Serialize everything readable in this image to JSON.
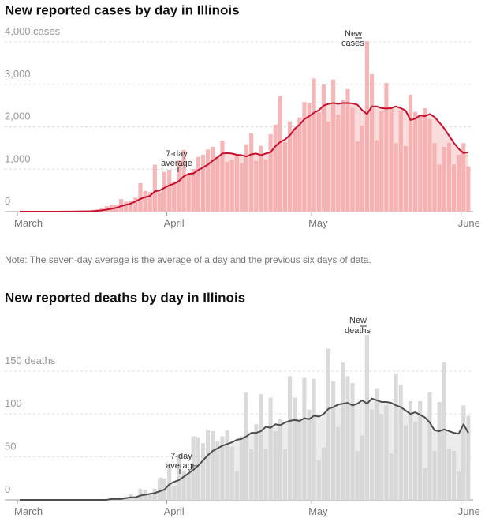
{
  "chart_data": [
    {
      "type": "bar",
      "title": "New reported cases by day in Illinois",
      "note": "Note: The seven-day average is the average of a day and the previous six days of data.",
      "bar_annotation": [
        "New",
        "cases"
      ],
      "line_annotation": [
        "7-day",
        "average"
      ],
      "x": [
        0,
        1,
        2,
        3,
        4,
        5,
        6,
        7,
        8,
        9,
        10,
        11,
        12,
        13,
        14,
        15,
        16,
        17,
        18,
        19,
        20,
        21,
        22,
        23,
        24,
        25,
        26,
        27,
        28,
        29,
        30,
        31,
        32,
        33,
        34,
        35,
        36,
        37,
        38,
        39,
        40,
        41,
        42,
        43,
        44,
        45,
        46,
        47,
        48,
        49,
        50,
        51,
        52,
        53,
        54,
        55,
        56,
        57,
        58,
        59,
        60,
        61,
        62,
        63,
        64,
        65,
        66,
        67,
        68,
        69,
        70,
        71,
        72,
        73,
        74,
        75,
        76,
        77,
        78,
        79,
        80,
        81,
        82,
        83,
        84,
        85,
        86,
        87,
        88,
        89,
        90,
        91,
        92,
        93
      ],
      "values": [
        0,
        0,
        0,
        0,
        1,
        1,
        1,
        0,
        3,
        4,
        6,
        7,
        13,
        14,
        18,
        29,
        54,
        90,
        127,
        168,
        163,
        296,
        236,
        250,
        330,
        673,
        488,
        465,
        1105,
        461,
        937,
        986,
        715,
        1209,
        1453,
        899,
        1006,
        1287,
        1344,
        1465,
        1529,
        1293,
        1672,
        1173,
        1222,
        1346,
        1140,
        1585,
        1842,
        1197,
        1551,
        1232,
        1826,
        2049,
        2724,
        1636,
        2126,
        1980,
        2219,
        2583,
        2563,
        3137,
        2341,
        2994,
        2122,
        3113,
        2270,
        2641,
        2887,
        2450,
        1656,
        2030,
        4014,
        3239,
        1678,
        2379,
        3032,
        2432,
        1610,
        2388,
        1545,
        2758,
        2352,
        2287,
        2437,
        2178,
        1614,
        1111,
        1527,
        1622,
        1111,
        1343,
        1614,
        1070
      ],
      "average": [
        0,
        0,
        0,
        0,
        0,
        0,
        1,
        1,
        1,
        2,
        2,
        3,
        5,
        6,
        8,
        11,
        18,
        30,
        47,
        68,
        90,
        130,
        160,
        190,
        240,
        300,
        340,
        370,
        480,
        500,
        560,
        620,
        660,
        720,
        830,
        890,
        900,
        980,
        1040,
        1110,
        1200,
        1280,
        1370,
        1380,
        1370,
        1340,
        1330,
        1300,
        1350,
        1370,
        1330,
        1370,
        1400,
        1540,
        1640,
        1700,
        1800,
        1950,
        2050,
        2180,
        2250,
        2330,
        2390,
        2500,
        2540,
        2560,
        2540,
        2560,
        2560,
        2550,
        2520,
        2390,
        2300,
        2480,
        2480,
        2440,
        2430,
        2440,
        2480,
        2440,
        2380,
        2160,
        2190,
        2270,
        2250,
        2300,
        2230,
        2100,
        1960,
        1790,
        1620,
        1480,
        1380,
        1400
      ],
      "color": "#f4a9ab",
      "area_color": "#fbdcdc",
      "line_color": "#c8102e",
      "xlim": [
        0,
        94.5
      ],
      "xticks": [
        {
          "value": 0,
          "label": "March"
        },
        {
          "value": 31,
          "label": "April"
        },
        {
          "value": 61,
          "label": "May"
        },
        {
          "value": 92,
          "label": "June"
        }
      ],
      "ylim": [
        0,
        4150
      ],
      "yticks": [
        0,
        {
          "value": 1000,
          "label": "1,000"
        },
        {
          "value": 2000,
          "label": "2,000"
        },
        {
          "value": 3000,
          "label": "3,000"
        },
        {
          "value": 4000,
          "label": "4,000 cases"
        }
      ],
      "grid": true
    },
    {
      "type": "bar",
      "title": "New reported deaths by day in Illinois",
      "bar_annotation": [
        "New",
        "deaths"
      ],
      "line_annotation": [
        "7-day",
        "average"
      ],
      "x": [
        0,
        1,
        2,
        3,
        4,
        5,
        6,
        7,
        8,
        9,
        10,
        11,
        12,
        13,
        14,
        15,
        16,
        17,
        18,
        19,
        20,
        21,
        22,
        23,
        24,
        25,
        26,
        27,
        28,
        29,
        30,
        31,
        32,
        33,
        34,
        35,
        36,
        37,
        38,
        39,
        40,
        41,
        42,
        43,
        44,
        45,
        46,
        47,
        48,
        49,
        50,
        51,
        52,
        53,
        54,
        55,
        56,
        57,
        58,
        59,
        60,
        61,
        62,
        63,
        64,
        65,
        66,
        67,
        68,
        69,
        70,
        71,
        72,
        73,
        74,
        75,
        76,
        77,
        78,
        79,
        80,
        81,
        82,
        83,
        84,
        85,
        86,
        87,
        88,
        89,
        90,
        91,
        92,
        93
      ],
      "values": [
        0,
        0,
        0,
        0,
        0,
        0,
        0,
        0,
        0,
        0,
        0,
        0,
        0,
        0,
        0,
        0,
        0,
        1,
        1,
        2,
        1,
        3,
        4,
        7,
        3,
        13,
        12,
        6,
        13,
        26,
        25,
        42,
        16,
        53,
        33,
        31,
        74,
        73,
        66,
        82,
        80,
        68,
        74,
        81,
        62,
        33,
        74,
        125,
        59,
        88,
        123,
        60,
        119,
        80,
        94,
        59,
        144,
        119,
        92,
        142,
        105,
        141,
        46,
        61,
        176,
        138,
        85,
        160,
        144,
        136,
        57,
        75,
        192,
        105,
        130,
        100,
        110,
        54,
        147,
        134,
        87,
        115,
        91,
        115,
        37,
        125,
        57,
        114,
        160,
        60,
        57,
        33,
        110,
        98
      ],
      "average": [
        0,
        0,
        0,
        0,
        0,
        0,
        0,
        0,
        0,
        0,
        0,
        0,
        0,
        0,
        0,
        0,
        0,
        0,
        0,
        1,
        1,
        1,
        2,
        3,
        3,
        5,
        6,
        7,
        8,
        10,
        12,
        18,
        21,
        23,
        27,
        31,
        35,
        40,
        46,
        52,
        57,
        60,
        63,
        65,
        67,
        70,
        71,
        74,
        78,
        78,
        80,
        85,
        84,
        88,
        87,
        90,
        92,
        93,
        92,
        95,
        94,
        98,
        97,
        100,
        106,
        108,
        111,
        112,
        113,
        110,
        112,
        116,
        112,
        118,
        116,
        114,
        114,
        113,
        110,
        108,
        104,
        100,
        102,
        99,
        96,
        90,
        81,
        80,
        82,
        80,
        78,
        77,
        88,
        78
      ],
      "color": "#d3d3d3",
      "area_color": "#ececec",
      "line_color": "#4d4d4d",
      "xlim": [
        0,
        94.5
      ],
      "xticks": [
        {
          "value": 0,
          "label": "March"
        },
        {
          "value": 31,
          "label": "April"
        },
        {
          "value": 61,
          "label": "May"
        },
        {
          "value": 92,
          "label": "June"
        }
      ],
      "ylim": [
        0,
        205
      ],
      "yticks": [
        0,
        50,
        100,
        {
          "value": 150,
          "label": "150 deaths"
        }
      ],
      "grid": true
    }
  ]
}
